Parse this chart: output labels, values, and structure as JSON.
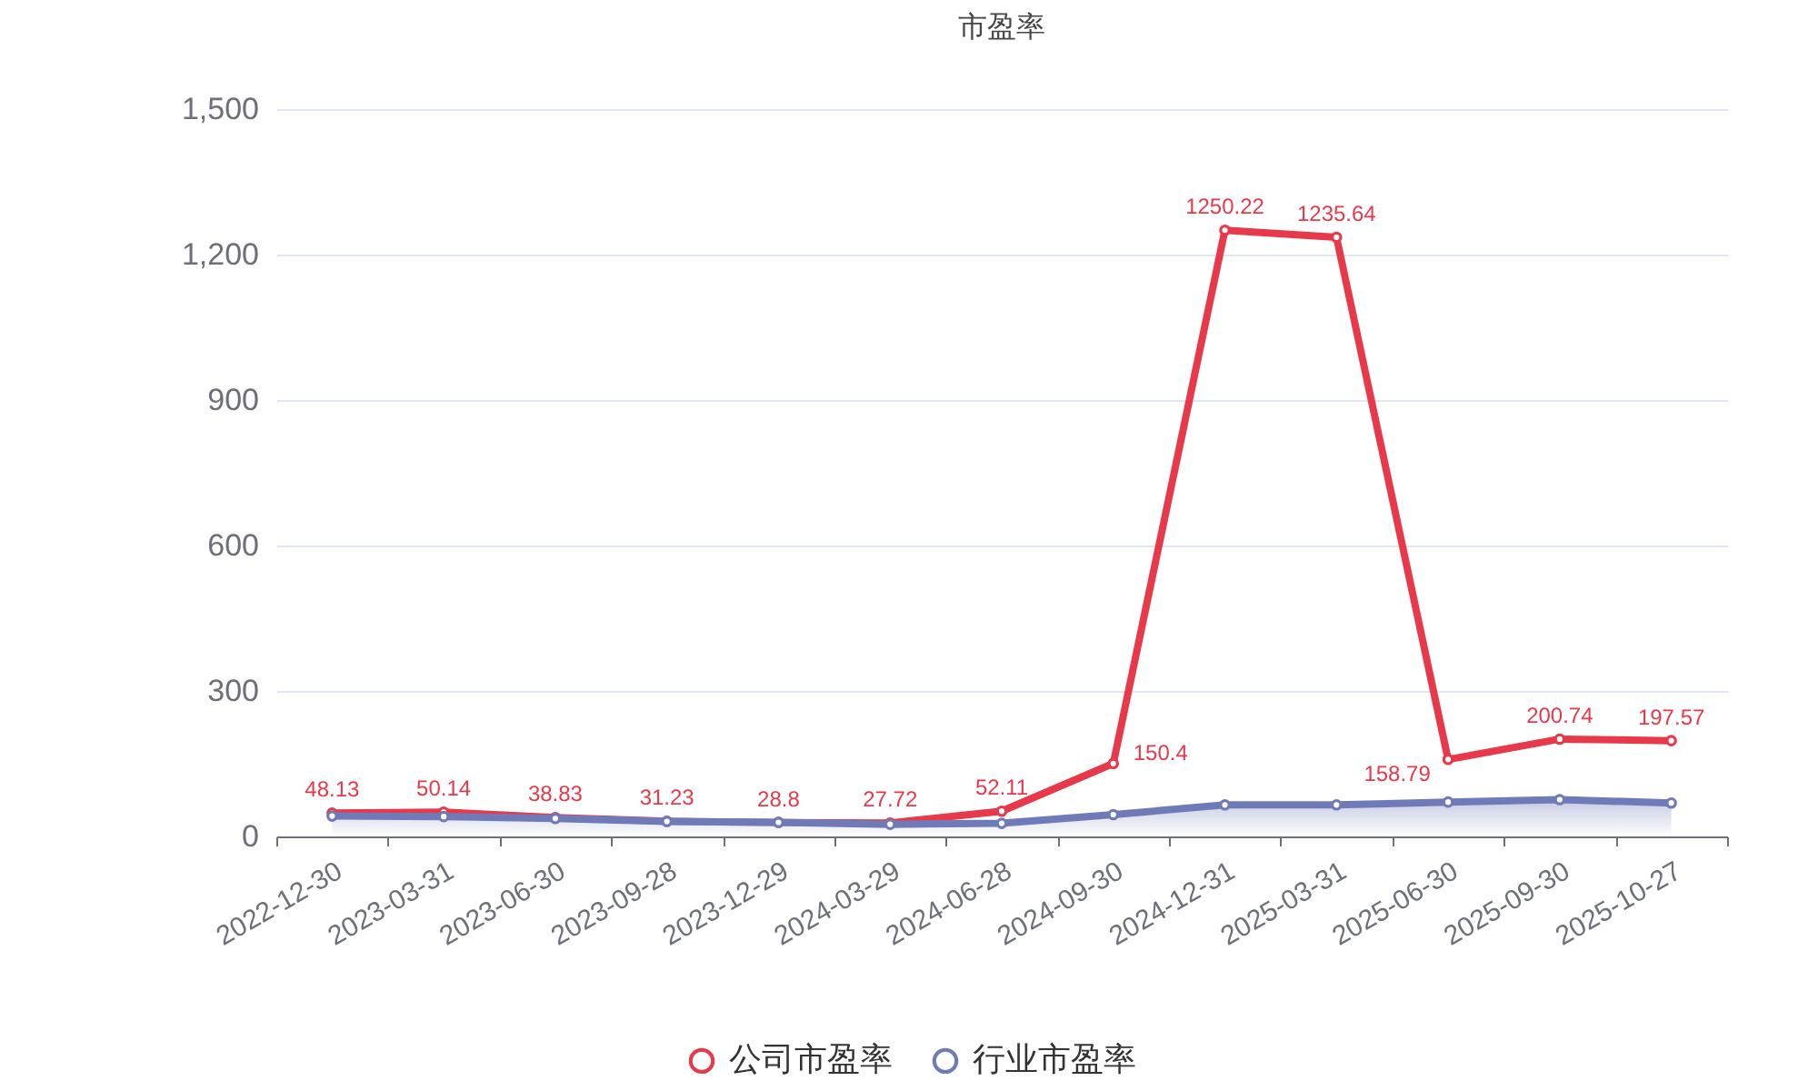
{
  "chart_data": {
    "type": "line",
    "title": "市盈率",
    "categories": [
      "2022-12-30",
      "2023-03-31",
      "2023-06-30",
      "2023-09-28",
      "2023-12-29",
      "2024-03-29",
      "2024-06-28",
      "2024-09-30",
      "2024-12-31",
      "2025-03-31",
      "2025-06-30",
      "2025-09-30",
      "2025-10-27"
    ],
    "series": [
      {
        "name": "公司市盈率",
        "color": "#e8394a",
        "values": [
          48.13,
          50.14,
          38.83,
          31.23,
          28.8,
          27.72,
          52.11,
          150.4,
          1250.22,
          1235.64,
          158.79,
          200.74,
          197.57
        ],
        "value_labels": [
          "48.13",
          "50.14",
          "38.83",
          "31.23",
          "28.8",
          "27.72",
          "52.11",
          "150.4",
          "1250.22",
          "1235.64",
          "158.79",
          "200.74",
          "197.57"
        ]
      },
      {
        "name": "行业市盈率",
        "type": "area",
        "color": "#6f7bb8",
        "values": [
          42,
          41,
          37,
          31,
          29,
          25,
          27,
          45,
          65,
          65,
          71,
          76,
          69
        ]
      }
    ],
    "ylim": [
      0,
      1500
    ],
    "yticks": [
      0,
      300,
      600,
      900,
      {
        "value": 1200,
        "label": "1,200"
      },
      {
        "value": 1500,
        "label": "1,500"
      }
    ],
    "grid": "y",
    "legend": "bottom",
    "marker": "circle"
  }
}
